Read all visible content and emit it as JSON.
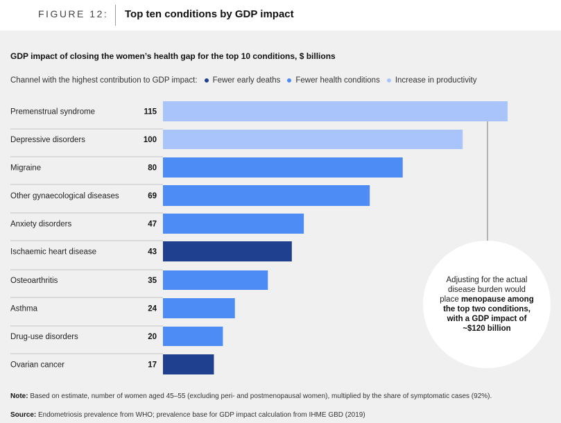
{
  "figure": {
    "label": "FIGURE 12:",
    "title": "Top ten conditions by GDP impact"
  },
  "subtitle": "GDP impact of closing the women’s health gap for the top 10 conditions, $ billions",
  "legend": {
    "prefix": "Channel with the highest contribution to GDP impact:",
    "items": [
      {
        "label": "Fewer early deaths",
        "color": "#1f3f8f"
      },
      {
        "label": "Fewer health conditions",
        "color": "#4d8bf5"
      },
      {
        "label": "Increase in productivity",
        "color": "#a8c4fa"
      }
    ]
  },
  "chart_data": {
    "type": "bar",
    "orientation": "horizontal",
    "title": "GDP impact of closing the women’s health gap for the top 10 conditions, $ billions",
    "categories": [
      "Premenstrual syndrome",
      "Depressive disorders",
      "Migraine",
      "Other gynaecological diseases",
      "Anxiety disorders",
      "Ischaemic heart disease",
      "Osteoarthritis",
      "Asthma",
      "Drug-use disorders",
      "Ovarian cancer"
    ],
    "values": [
      115,
      100,
      80,
      69,
      47,
      43,
      35,
      24,
      20,
      17
    ],
    "channels": [
      "Increase in productivity",
      "Increase in productivity",
      "Fewer health conditions",
      "Fewer health conditions",
      "Fewer health conditions",
      "Fewer early deaths",
      "Fewer health conditions",
      "Fewer health conditions",
      "Fewer health conditions",
      "Fewer early deaths"
    ],
    "colors": {
      "Fewer early deaths": "#1f3f8f",
      "Fewer health conditions": "#4d8bf5",
      "Increase in productivity": "#a8c4fa"
    },
    "xlim": [
      0,
      120
    ],
    "grid": false,
    "legend_position": "top-left"
  },
  "callout": {
    "text_plain": "Adjusting for the actual disease burden would place",
    "text_bold": "menopause among the top two conditions, with a GDP impact of ~$120 billion"
  },
  "note": {
    "label": "Note:",
    "text": "Based on estimate, number of women aged 45–55 (excluding peri- and postmenopausal women), multiplied by the share of symptomatic cases (92%)."
  },
  "source": {
    "label": "Source:",
    "text": "Endometriosis prevalence from WHO; prevalence base for GDP impact calculation from IHME GBD (2019)"
  }
}
